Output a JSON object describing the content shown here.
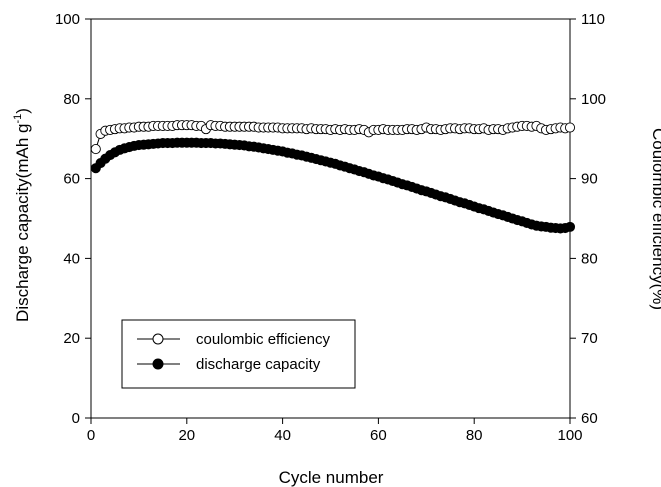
{
  "chart_data": {
    "type": "scatter",
    "xlabel": "Cycle number",
    "ylabel_left": "Discharge capacity(mAh g",
    "ylabel_left_sup": "-1",
    "ylabel_left_close": ")",
    "ylabel_right": "Coulombic efficiency(%)",
    "xlim": [
      0,
      100
    ],
    "ylim_left": [
      0,
      100
    ],
    "ylim_right": [
      60,
      110
    ],
    "x_ticks": [
      0,
      20,
      40,
      60,
      80,
      100
    ],
    "y_left_ticks": [
      0,
      20,
      40,
      60,
      80,
      100
    ],
    "y_right_ticks": [
      60,
      70,
      80,
      90,
      100,
      110
    ],
    "legend_position": "bottom-left",
    "grid": false,
    "series": [
      {
        "name": "coulombic efficiency",
        "axis": "right",
        "marker": "open-circle",
        "x": [
          1,
          2,
          3,
          4,
          5,
          6,
          7,
          8,
          9,
          10,
          11,
          12,
          13,
          14,
          15,
          16,
          17,
          18,
          19,
          20,
          21,
          22,
          23,
          24,
          25,
          26,
          27,
          28,
          29,
          30,
          31,
          32,
          33,
          34,
          35,
          36,
          37,
          38,
          39,
          40,
          41,
          42,
          43,
          44,
          45,
          46,
          47,
          48,
          49,
          50,
          51,
          52,
          53,
          54,
          55,
          56,
          57,
          58,
          59,
          60,
          61,
          62,
          63,
          64,
          65,
          66,
          67,
          68,
          69,
          70,
          71,
          72,
          73,
          74,
          75,
          76,
          77,
          78,
          79,
          80,
          81,
          82,
          83,
          84,
          85,
          86,
          87,
          88,
          89,
          90,
          91,
          92,
          93,
          94,
          95,
          96,
          97,
          98,
          99,
          100
        ],
        "values": [
          93.7,
          95.6,
          96.0,
          96.1,
          96.2,
          96.3,
          96.3,
          96.4,
          96.4,
          96.5,
          96.5,
          96.5,
          96.6,
          96.6,
          96.6,
          96.6,
          96.6,
          96.7,
          96.7,
          96.7,
          96.7,
          96.6,
          96.6,
          96.2,
          96.7,
          96.6,
          96.6,
          96.5,
          96.5,
          96.5,
          96.5,
          96.5,
          96.5,
          96.5,
          96.4,
          96.4,
          96.4,
          96.4,
          96.4,
          96.3,
          96.3,
          96.3,
          96.3,
          96.3,
          96.2,
          96.3,
          96.2,
          96.2,
          96.2,
          96.1,
          96.2,
          96.1,
          96.2,
          96.1,
          96.1,
          96.2,
          96.1,
          95.8,
          96.1,
          96.1,
          96.2,
          96.1,
          96.1,
          96.1,
          96.1,
          96.2,
          96.2,
          96.1,
          96.2,
          96.4,
          96.2,
          96.2,
          96.1,
          96.2,
          96.3,
          96.3,
          96.2,
          96.3,
          96.3,
          96.2,
          96.2,
          96.3,
          96.1,
          96.2,
          96.2,
          96.1,
          96.3,
          96.4,
          96.5,
          96.6,
          96.6,
          96.5,
          96.6,
          96.3,
          96.1,
          96.2,
          96.3,
          96.4,
          96.3,
          96.4
        ]
      },
      {
        "name": "discharge capacity",
        "axis": "left",
        "marker": "filled-circle",
        "x": [
          1,
          2,
          3,
          4,
          5,
          6,
          7,
          8,
          9,
          10,
          11,
          12,
          13,
          14,
          15,
          16,
          17,
          18,
          19,
          20,
          21,
          22,
          23,
          24,
          25,
          26,
          27,
          28,
          29,
          30,
          31,
          32,
          33,
          34,
          35,
          36,
          37,
          38,
          39,
          40,
          41,
          42,
          43,
          44,
          45,
          46,
          47,
          48,
          49,
          50,
          51,
          52,
          53,
          54,
          55,
          56,
          57,
          58,
          59,
          60,
          61,
          62,
          63,
          64,
          65,
          66,
          67,
          68,
          69,
          70,
          71,
          72,
          73,
          74,
          75,
          76,
          77,
          78,
          79,
          80,
          81,
          82,
          83,
          84,
          85,
          86,
          87,
          88,
          89,
          90,
          91,
          92,
          93,
          94,
          95,
          96,
          97,
          98,
          99,
          100
        ],
        "values": [
          62.6,
          63.9,
          65.0,
          65.9,
          66.6,
          67.2,
          67.6,
          67.9,
          68.2,
          68.4,
          68.5,
          68.6,
          68.7,
          68.8,
          68.9,
          68.9,
          68.9,
          69.0,
          69.0,
          69.0,
          69.0,
          69.0,
          68.9,
          68.9,
          68.9,
          68.8,
          68.8,
          68.7,
          68.6,
          68.5,
          68.4,
          68.3,
          68.1,
          68.0,
          67.8,
          67.6,
          67.4,
          67.2,
          67.0,
          66.8,
          66.5,
          66.3,
          66.0,
          65.8,
          65.5,
          65.2,
          64.9,
          64.6,
          64.3,
          64.0,
          63.7,
          63.3,
          63.0,
          62.6,
          62.3,
          61.9,
          61.6,
          61.2,
          60.8,
          60.5,
          60.1,
          59.8,
          59.4,
          59.0,
          58.6,
          58.3,
          57.9,
          57.5,
          57.1,
          56.8,
          56.4,
          56.0,
          55.6,
          55.3,
          54.9,
          54.5,
          54.1,
          53.8,
          53.4,
          53.0,
          52.6,
          52.3,
          51.9,
          51.5,
          51.1,
          50.8,
          50.4,
          50.0,
          49.6,
          49.3,
          48.9,
          48.5,
          48.2,
          48.0,
          47.9,
          47.7,
          47.6,
          47.5,
          47.6,
          47.9
        ]
      }
    ]
  }
}
